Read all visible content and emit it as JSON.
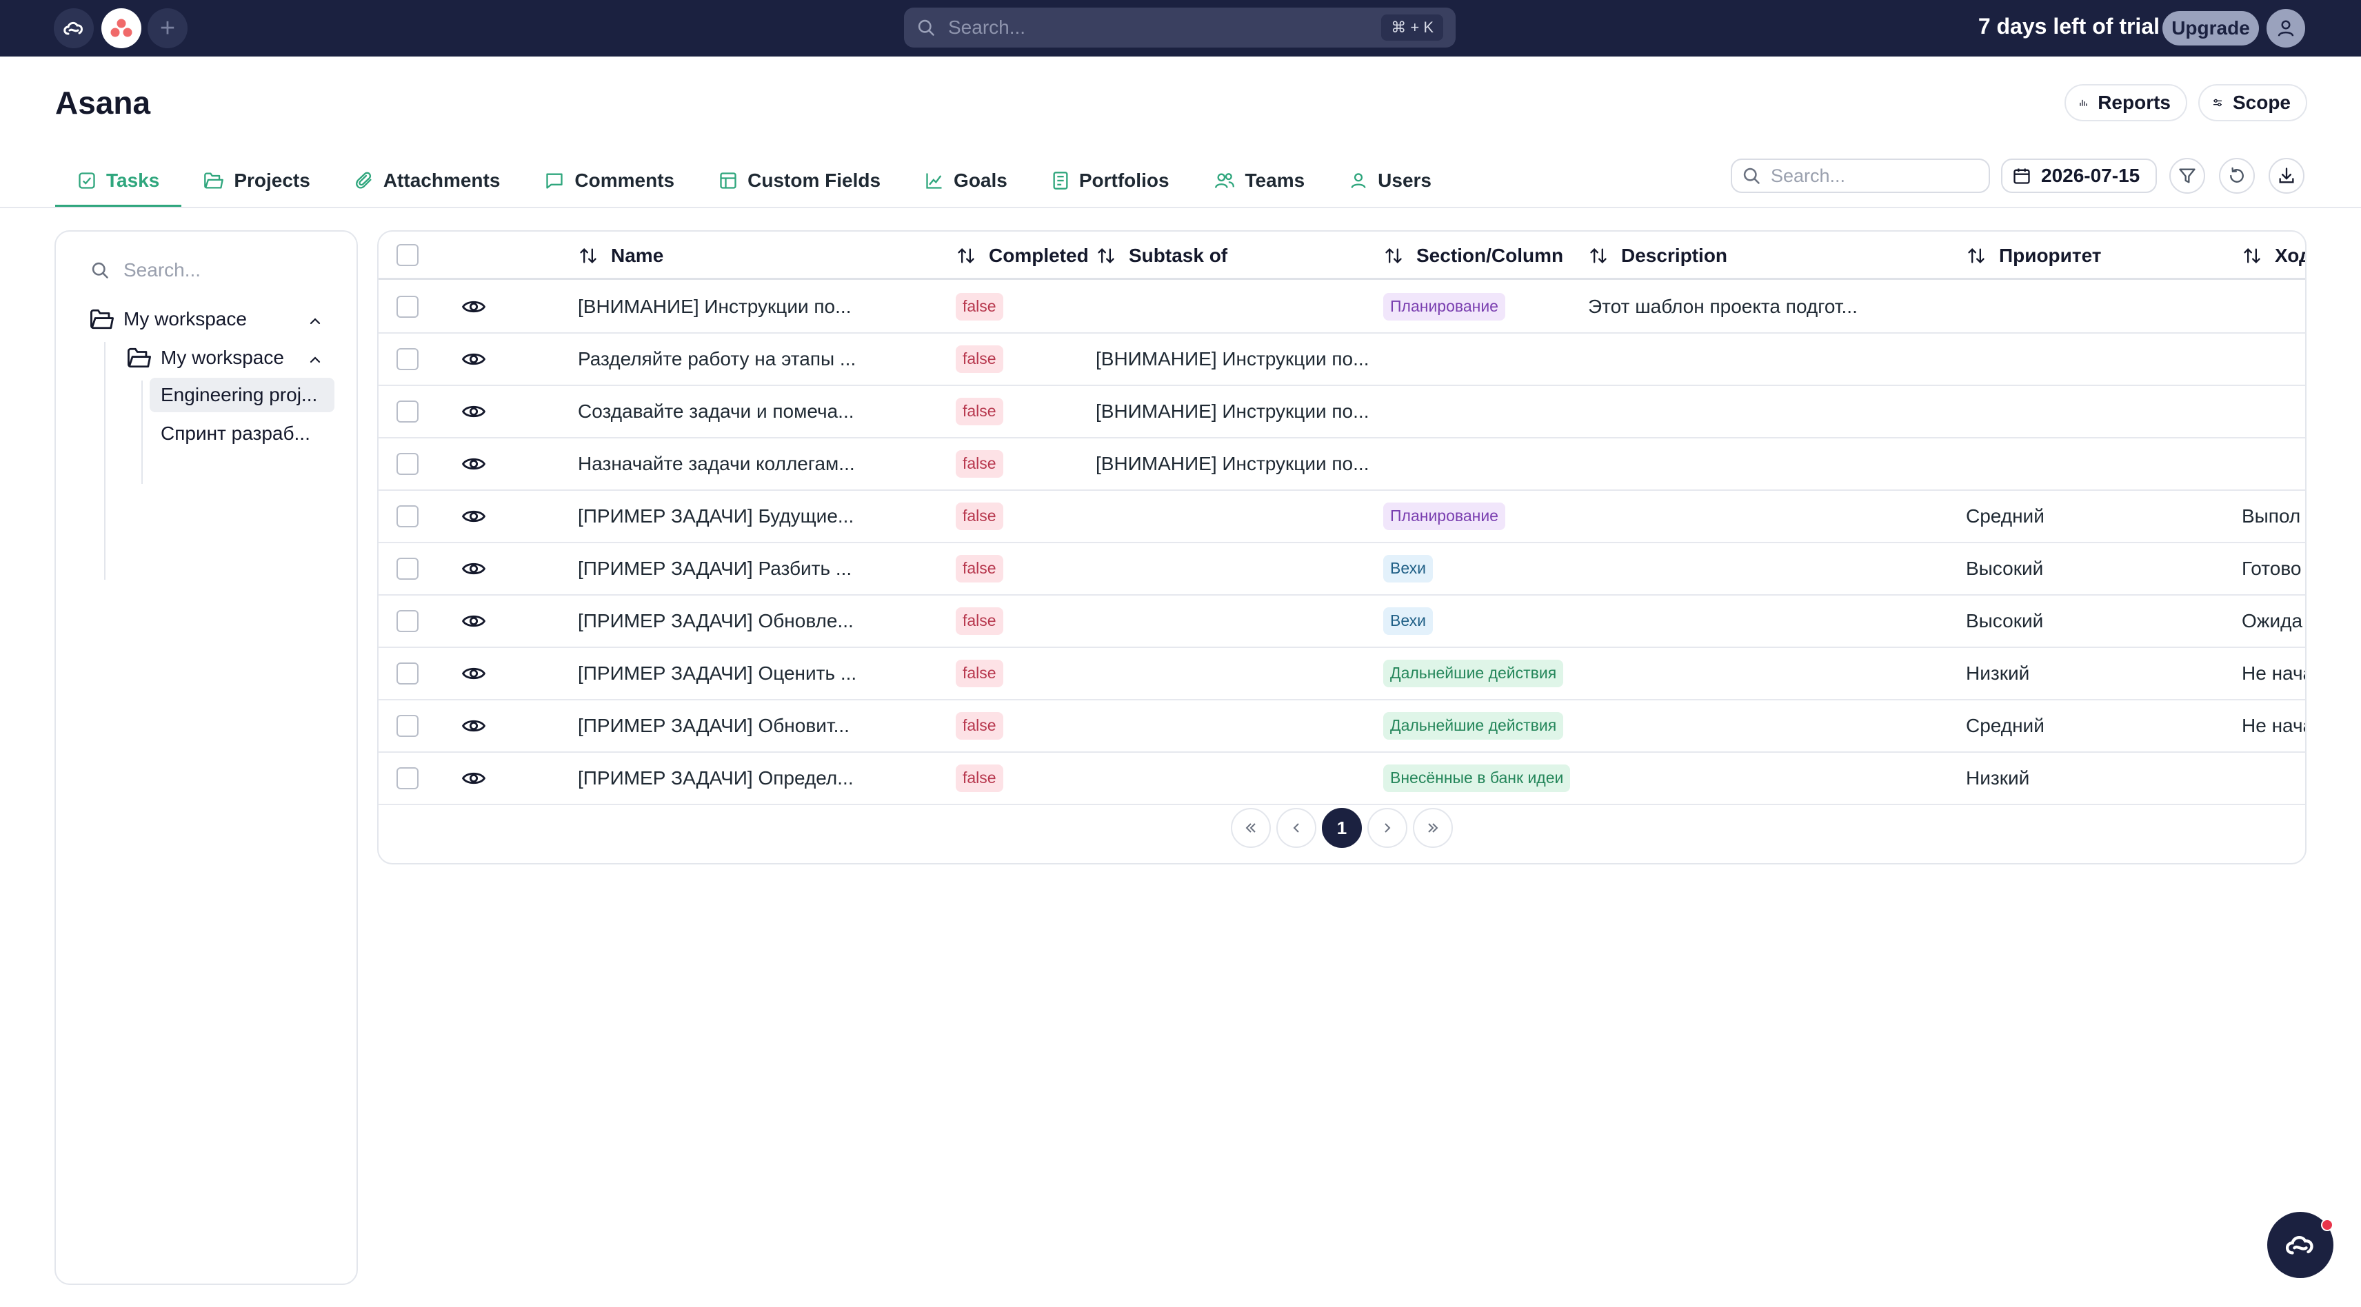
{
  "topbar": {
    "search_placeholder": "Search...",
    "shortcut": "⌘ + K",
    "trial_text": "7 days left of trial",
    "upgrade_label": "Upgrade",
    "icons": [
      "app-logo-icon",
      "asana-logo-icon",
      "plus-icon",
      "search-icon",
      "user-icon"
    ]
  },
  "header": {
    "title": "Asana",
    "reports_label": "Reports",
    "scope_label": "Scope"
  },
  "tabs": [
    {
      "label": "Tasks",
      "icon": "task-check-icon",
      "active": true
    },
    {
      "label": "Projects",
      "icon": "folder-icon"
    },
    {
      "label": "Attachments",
      "icon": "paperclip-icon"
    },
    {
      "label": "Comments",
      "icon": "comment-icon"
    },
    {
      "label": "Custom Fields",
      "icon": "table-icon"
    },
    {
      "label": "Goals",
      "icon": "chart-line-icon"
    },
    {
      "label": "Portfolios",
      "icon": "portfolio-icon"
    },
    {
      "label": "Teams",
      "icon": "users-icon"
    },
    {
      "label": "Users",
      "icon": "user-icon"
    }
  ],
  "toolbar": {
    "search_placeholder": "Search...",
    "date": "2026-07-15"
  },
  "sidebar": {
    "search_placeholder": "Search...",
    "tree": {
      "root": "My workspace",
      "child": "My workspace",
      "leaves": [
        "Engineering proj...",
        "Спринт разраб..."
      ],
      "selected_leaf": 0
    }
  },
  "table": {
    "columns": [
      "Name",
      "Completed",
      "Subtask of",
      "Section/Column",
      "Description",
      "Приоритет",
      "Ход"
    ],
    "rows": [
      {
        "name": "[ВНИМАНИЕ] Инструкции по...",
        "completed": "false",
        "subtask_of": "",
        "section": "Планирование",
        "description": "Этот шаблон проекта подгот...",
        "priority": "",
        "progress": ""
      },
      {
        "name": "Разделяйте работу на этапы ...",
        "completed": "false",
        "subtask_of": "[ВНИМАНИЕ] Инструкции по...",
        "section": "",
        "description": "",
        "priority": "",
        "progress": ""
      },
      {
        "name": "Создавайте задачи и помеча...",
        "completed": "false",
        "subtask_of": "[ВНИМАНИЕ] Инструкции по...",
        "section": "",
        "description": "",
        "priority": "",
        "progress": ""
      },
      {
        "name": "Назначайте задачи коллегам...",
        "completed": "false",
        "subtask_of": "[ВНИМАНИЕ] Инструкции по...",
        "section": "",
        "description": "",
        "priority": "",
        "progress": ""
      },
      {
        "name": "[ПРИМЕР ЗАДАЧИ] Будущие...",
        "completed": "false",
        "subtask_of": "",
        "section": "Планирование",
        "description": "",
        "priority": "Средний",
        "progress": "Выпол"
      },
      {
        "name": "[ПРИМЕР ЗАДАЧИ] Разбить ...",
        "completed": "false",
        "subtask_of": "",
        "section": "Вехи",
        "description": "",
        "priority": "Высокий",
        "progress": "Готово"
      },
      {
        "name": "[ПРИМЕР ЗАДАЧИ] Обновле...",
        "completed": "false",
        "subtask_of": "",
        "section": "Вехи",
        "description": "",
        "priority": "Высокий",
        "progress": "Ожида"
      },
      {
        "name": "[ПРИМЕР ЗАДАЧИ] Оценить ...",
        "completed": "false",
        "subtask_of": "",
        "section": "Дальнейшие действия",
        "description": "",
        "priority": "Низкий",
        "progress": "Не нача"
      },
      {
        "name": "[ПРИМЕР ЗАДАЧИ] Обновит...",
        "completed": "false",
        "subtask_of": "",
        "section": "Дальнейшие действия",
        "description": "",
        "priority": "Средний",
        "progress": "Не нача"
      },
      {
        "name": "[ПРИМЕР ЗАДАЧИ] Определ...",
        "completed": "false",
        "subtask_of": "",
        "section": "Внесённые в банк идеи",
        "description": "",
        "priority": "Низкий",
        "progress": ""
      }
    ],
    "section_colors": {
      "Планирование": {
        "bg": "#f1e6fb",
        "fg": "#7a3fb0"
      },
      "Вехи": {
        "bg": "#e3f1fb",
        "fg": "#1f5f86"
      },
      "Дальнейшие действия": {
        "bg": "#dff5e8",
        "fg": "#24865a"
      },
      "Внесённые в банк идеи": {
        "bg": "#dff5e8",
        "fg": "#24865a"
      }
    }
  },
  "pagination": {
    "current_page": "1"
  },
  "colors": {
    "accent": "#2fa67d",
    "navbar": "#1b2140"
  }
}
